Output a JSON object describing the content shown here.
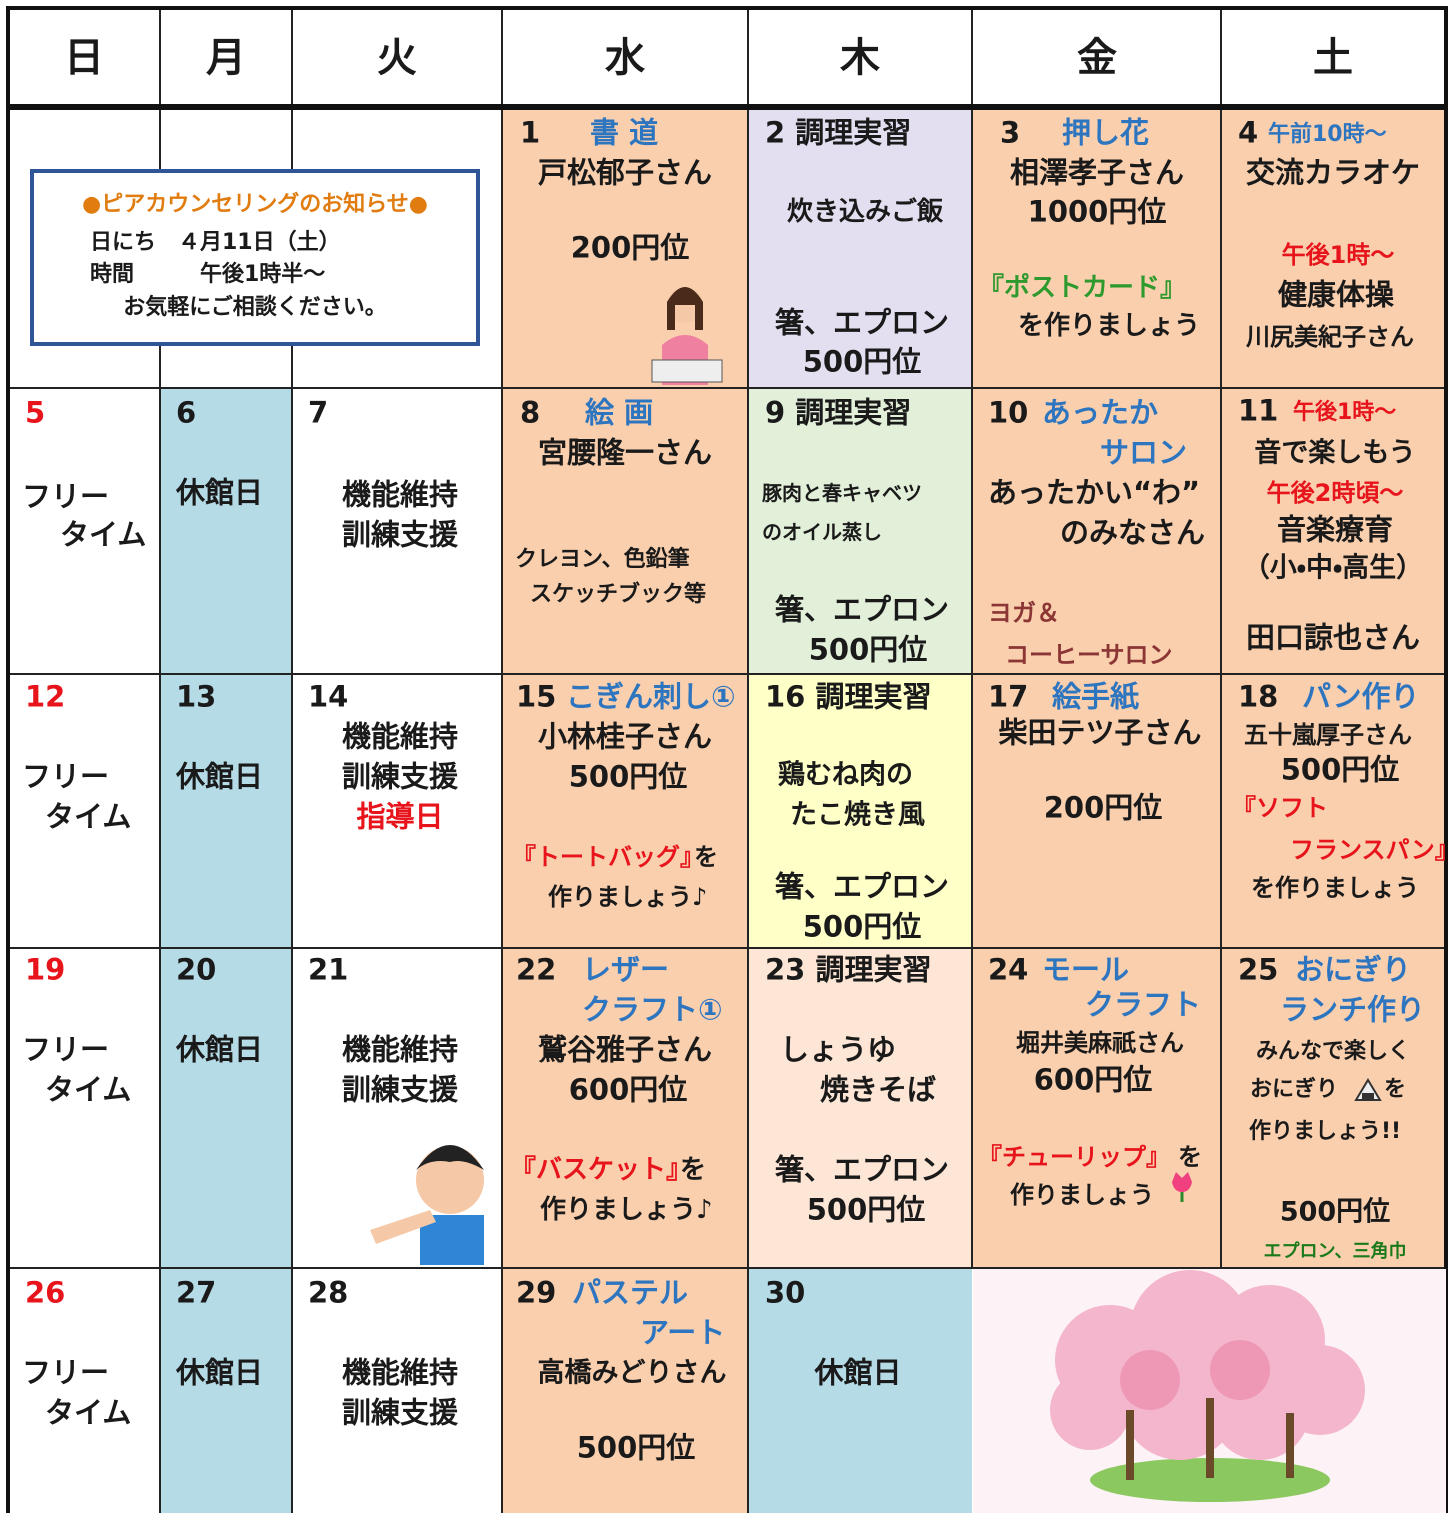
{
  "header": [
    "日",
    "月",
    "火",
    "水",
    "木",
    "金",
    "土"
  ],
  "notice": {
    "title": "●ピアカウンセリングのお知らせ●",
    "lines": [
      "日にち　４月11日（土）",
      "時間　　　午後1時半～",
      "お気軽にご相談ください。"
    ]
  },
  "weeks": [
    [
      [],
      [],
      [],
      [
        "1",
        "書 道",
        "戸松郁子さん",
        "200円位"
      ],
      [
        "2 調理実習",
        "炊き込みご飯",
        "箸、エプロン",
        "500円位"
      ],
      [
        "3",
        "押し花",
        "相澤孝子さん",
        "1000円位",
        "『ポストカード』",
        "を作りましょう"
      ],
      [
        "4",
        "午前10時～",
        "交流カラオケ",
        "午後1時～",
        "健康体操",
        "川尻美紀子さん"
      ]
    ],
    [
      [
        "5",
        "フリー",
        "タイム"
      ],
      [
        "6",
        "休館日"
      ],
      [
        "7",
        "機能維持",
        "訓練支援"
      ],
      [
        "8",
        "絵 画",
        "宮腰隆一さん",
        "クレヨン、色鉛筆",
        "スケッチブック等"
      ],
      [
        "9 調理実習",
        "豚肉と春キャベツ",
        "のオイル蒸し",
        "箸、エプロン",
        "500円位"
      ],
      [
        "10",
        "あったか",
        "サロン",
        "あったかい“わ”",
        "のみなさん",
        "ヨガ＆",
        "コーヒーサロン"
      ],
      [
        "11",
        "午後1時～",
        "音で楽しもう",
        "午後2時頃～",
        "音楽療育",
        "（小・中・高生）",
        "田口諒也さん"
      ]
    ],
    [
      [
        "12",
        "フリー",
        "タイム"
      ],
      [
        "13",
        "休館日"
      ],
      [
        "14",
        "機能維持",
        "訓練支援",
        "指導日"
      ],
      [
        "15",
        "こぎん刺し①",
        "小林桂子さん",
        "500円位",
        "『トートバッグ』",
        "を",
        "作りましょう♪"
      ],
      [
        "16 調理実習",
        "鶏むね肉の",
        "たこ焼き風",
        "箸、エプロン",
        "500円位"
      ],
      [
        "17",
        "絵手紙",
        "柴田テツ子さん",
        "200円位"
      ],
      [
        "18",
        "パン作り",
        "五十嵐厚子さん",
        "500円位",
        "『ソフト",
        "フランスパン』",
        "を作りましょう"
      ]
    ],
    [
      [
        "19",
        "フリー",
        "タイム"
      ],
      [
        "20",
        "休館日"
      ],
      [
        "21",
        "機能維持",
        "訓練支援"
      ],
      [
        "22",
        "レザー",
        "クラフト①",
        "鷲谷雅子さん",
        "600円位",
        "『バスケット』",
        "を",
        "作りましょう♪"
      ],
      [
        "23 調理実習",
        "しょうゆ",
        "焼きそば",
        "箸、エプロン",
        "500円位"
      ],
      [
        "24",
        "モール",
        "クラフト",
        "堀井美麻祇さん",
        "600円位",
        "『チューリップ』",
        "を",
        "作りましょう"
      ],
      [
        "25",
        "おにぎり",
        "ランチ作り",
        "みんなで楽しく",
        "おにぎり",
        "を",
        "作りましょう!!",
        "500円位",
        "エプロン、三角巾"
      ]
    ],
    [
      [
        "26",
        "フリー",
        "タイム"
      ],
      [
        "27",
        "休館日"
      ],
      [
        "28",
        "機能維持",
        "訓練支援"
      ],
      [
        "29",
        "パステル",
        "アート",
        "高橋みどりさん",
        "500円位"
      ],
      [
        "30",
        "休館日"
      ],
      [],
      []
    ]
  ]
}
